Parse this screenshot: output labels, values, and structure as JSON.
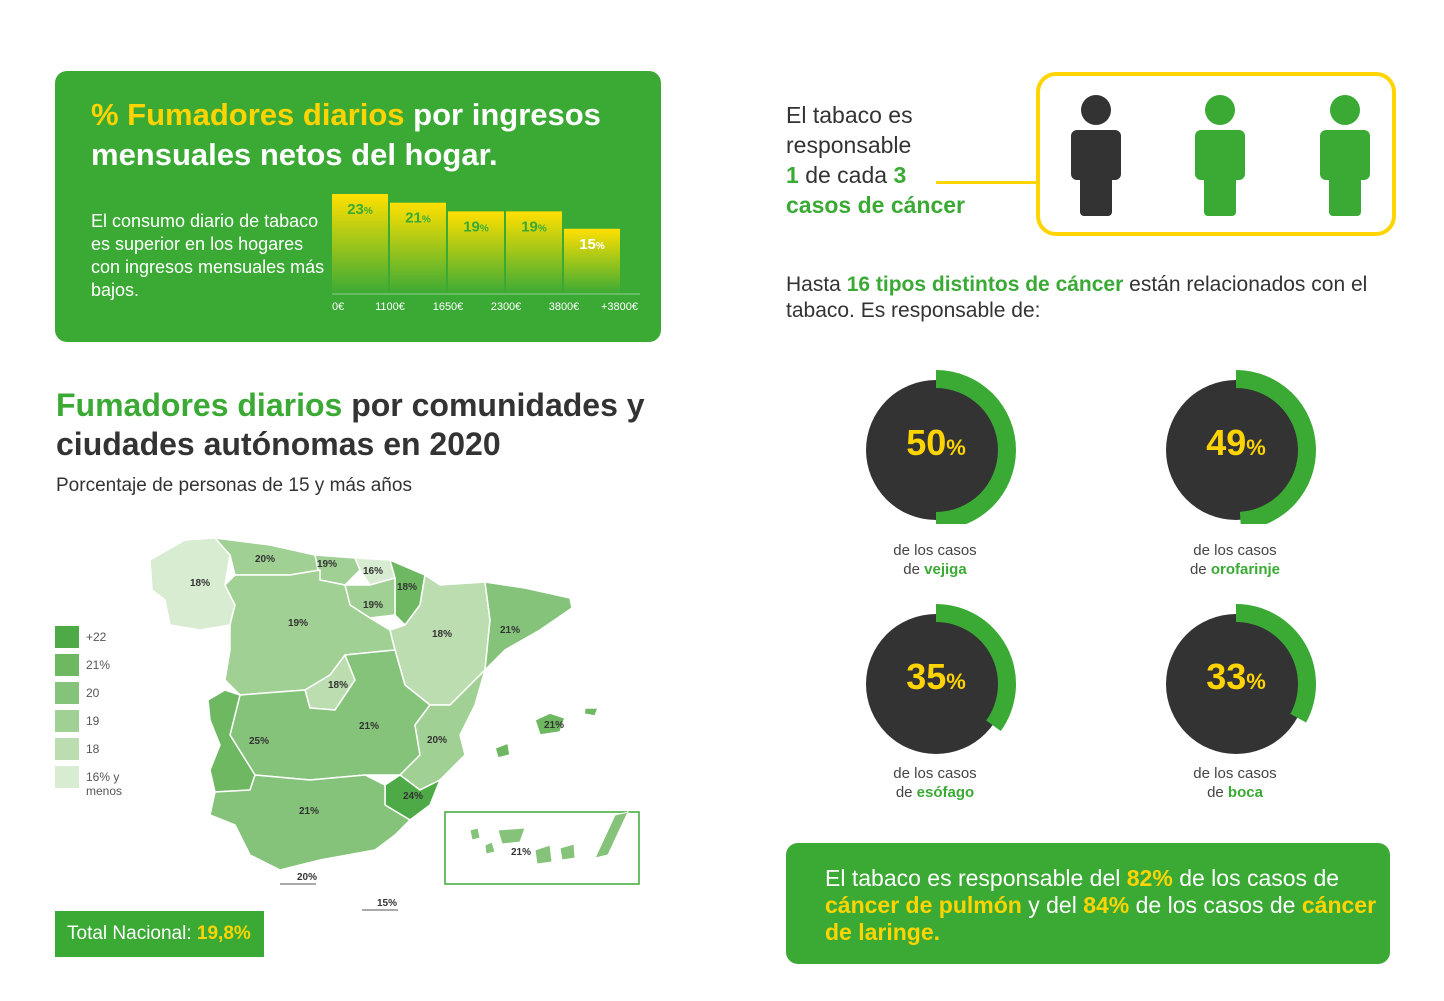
{
  "income_panel": {
    "title_highlight": "% Fumadores diarios",
    "title_rest": "por ingresos mensuales netos del hogar.",
    "description": "El consumo diario de tabaco es superior en los hogares con ingresos mensuales más bajos."
  },
  "chart_data": {
    "type": "bar",
    "title": "% Fumadores diarios por ingresos mensuales netos del hogar",
    "categories": [
      "0€–1100€",
      "1100€–1650€",
      "1650€–2300€",
      "2300€–3800€",
      "+3800€"
    ],
    "values": [
      23,
      21,
      19,
      19,
      15
    ],
    "value_labels": [
      "23",
      "21",
      "19",
      "19",
      "15"
    ],
    "unit": "%",
    "tick_labels": [
      "0€",
      "1100€",
      "1650€",
      "2300€",
      "3800€",
      "+3800€"
    ],
    "ylim": [
      0,
      23
    ],
    "colors": {
      "bar_top": "#ffd400",
      "bar_bottom": "#3aaa35",
      "label": "#3aaa35"
    }
  },
  "map_section": {
    "title_highlight": "Fumadores diarios",
    "title_rest": "por comunidades y ciudades autónomas en 2020",
    "subtitle": "Porcentaje de personas de 15 y más años",
    "legend": [
      {
        "label": "+22",
        "color": "#4eaa47"
      },
      {
        "label": "21%",
        "color": "#6eb862"
      },
      {
        "label": "20",
        "color": "#86c37a"
      },
      {
        "label": "19",
        "color": "#a0d093"
      },
      {
        "label": "18",
        "color": "#bcddb0"
      },
      {
        "label": "16% y menos",
        "color": "#d8ecd1"
      }
    ],
    "regions": [
      {
        "name": "Galicia",
        "value": "18%"
      },
      {
        "name": "Asturias",
        "value": "20%"
      },
      {
        "name": "Cantabria",
        "value": "19%"
      },
      {
        "name": "País Vasco",
        "value": "16%"
      },
      {
        "name": "Navarra",
        "value": "18%"
      },
      {
        "name": "La Rioja",
        "value": "19%"
      },
      {
        "name": "Castilla y León",
        "value": "19%"
      },
      {
        "name": "Aragón",
        "value": "18%"
      },
      {
        "name": "Cataluña",
        "value": "21%"
      },
      {
        "name": "Madrid",
        "value": "18%"
      },
      {
        "name": "Castilla-La Mancha",
        "value": "21%"
      },
      {
        "name": "Extremadura",
        "value": "25%"
      },
      {
        "name": "Comunidad Valenciana",
        "value": "20%"
      },
      {
        "name": "Baleares",
        "value": "21%"
      },
      {
        "name": "Murcia",
        "value": "24%"
      },
      {
        "name": "Andalucía",
        "value": "21%"
      },
      {
        "name": "Canarias",
        "value": "21%"
      },
      {
        "name": "Ceuta",
        "value": "20%"
      },
      {
        "name": "Melilla",
        "value": "15%"
      }
    ],
    "total_label": "Total Nacional:",
    "total_value": "19,8%"
  },
  "responsibility": {
    "line1": "El tabaco es",
    "line2": "responsable",
    "num1": "1",
    "middle": "de cada",
    "num2": "3",
    "line4": "casos de cáncer",
    "people": [
      {
        "icon": "person-dark-icon",
        "color": "#333333"
      },
      {
        "icon": "person-green-icon",
        "color": "#3aaa35"
      },
      {
        "icon": "person-green-icon",
        "color": "#3aaa35"
      }
    ]
  },
  "cancer_types": {
    "prefix": "Hasta",
    "highlight": "16 tipos distintos de cáncer",
    "suffix": "están relacionados con el tabaco. Es responsable de:",
    "items": [
      {
        "value": 50,
        "number": "50",
        "pct": "%",
        "caption_prefix": "de los casos",
        "caption_de": "de",
        "organ": "vejiga"
      },
      {
        "value": 49,
        "number": "49",
        "pct": "%",
        "caption_prefix": "de los casos",
        "caption_de": "de",
        "organ": "orofarinje"
      },
      {
        "value": 35,
        "number": "35",
        "pct": "%",
        "caption_prefix": "de los casos",
        "caption_de": "de",
        "organ": "esófago"
      },
      {
        "value": 33,
        "number": "33",
        "pct": "%",
        "caption_prefix": "de los casos",
        "caption_de": "de",
        "organ": "boca"
      }
    ]
  },
  "bottom_panel": {
    "t1": "El tabaco es responsable del",
    "v1": "82%",
    "t2": "de los casos de",
    "h1": "cáncer de pulmón",
    "t3": "y del",
    "v2": "84%",
    "t4": "de los casos de",
    "h2": "cáncer de laringe."
  },
  "colors": {
    "brand_green": "#3aaa35",
    "accent_yellow": "#ffd400",
    "dark": "#333333"
  }
}
